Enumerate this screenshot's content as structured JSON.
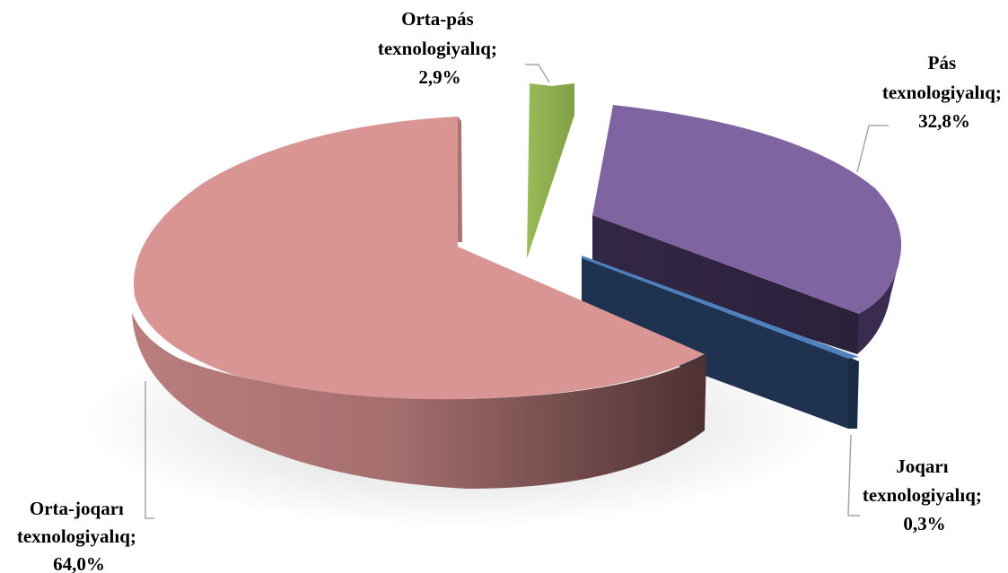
{
  "chart_data": {
    "type": "pie",
    "style": "3d-exploded",
    "slices": [
      {
        "label_lines": [
          "Pás",
          "texnologiyalıq;",
          "32,8%"
        ],
        "value": 32.8,
        "color": "#8064A2"
      },
      {
        "label_lines": [
          "Joqarı",
          "texnologiyalıq;",
          "0,3%"
        ],
        "value": 0.3,
        "color": "#4F81BD"
      },
      {
        "label_lines": [
          "Orta-joqarı",
          "texnologiyalıq;",
          "64,0%"
        ],
        "value": 64.0,
        "color": "#D99594"
      },
      {
        "label_lines": [
          "Orta-pás",
          "texnologiyalıq;",
          "2,9%"
        ],
        "value": 2.9,
        "color": "#9BBB59"
      }
    ],
    "legend": "none",
    "labels": "outside with leader lines"
  }
}
